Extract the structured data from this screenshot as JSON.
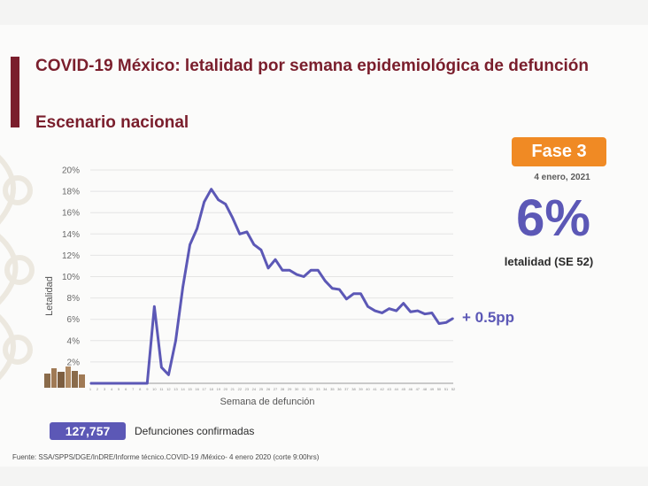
{
  "header": {
    "title": "COVID-19 México: letalidad por semana epidemiológica de defunción",
    "subtitle": "Escenario nacional"
  },
  "summary": {
    "phase": "Fase 3",
    "date": "4 enero, 2021",
    "value": "6%",
    "caption": "letalidad (SE 52)",
    "change": "+ 0.5pp"
  },
  "footer": {
    "deaths_count": "127,757",
    "deaths_label": "Defunciones confirmadas",
    "source": "Fuente: SSA/SPPS/DGE/InDRE/Informe técnico.COVID-19 /México- 4 enero 2020 (corte 9:00hrs)"
  },
  "colors": {
    "line": "#5c58b6",
    "title": "#7a1e2c",
    "accent_bar": "#7a1e2c",
    "phase_badge": "#f08a24",
    "deaths_box": "#5c58b6"
  },
  "chart_data": {
    "type": "line",
    "xlabel": "Semana  de defunción",
    "ylabel": "Letalidad",
    "ylim": [
      0,
      20
    ],
    "yticks": [
      "",
      "2%",
      "4%",
      "6%",
      "8%",
      "10%",
      "12%",
      "14%",
      "16%",
      "18%",
      "20%"
    ],
    "grid": true,
    "x": [
      1,
      2,
      3,
      4,
      5,
      6,
      7,
      8,
      9,
      10,
      11,
      12,
      13,
      14,
      15,
      16,
      17,
      18,
      19,
      20,
      21,
      22,
      23,
      24,
      25,
      26,
      27,
      28,
      29,
      30,
      31,
      32,
      33,
      34,
      35,
      36,
      37,
      38,
      39,
      40,
      41,
      42,
      43,
      44,
      45,
      46,
      47,
      48,
      49,
      50,
      51,
      52
    ],
    "series": [
      {
        "values": [
          0,
          0,
          0,
          0,
          0,
          0,
          0,
          0,
          0,
          7.2,
          1.5,
          0.8,
          4.0,
          9.0,
          13.0,
          14.5,
          17.0,
          18.2,
          17.2,
          16.8,
          15.5,
          14.0,
          14.2,
          13.0,
          12.5,
          10.8,
          11.6,
          10.6,
          10.6,
          10.2,
          10.0,
          10.6,
          10.6,
          9.6,
          8.9,
          8.8,
          7.9,
          8.4,
          8.4,
          7.2,
          6.8,
          6.6,
          7.0,
          6.8,
          7.5,
          6.7,
          6.8,
          6.5,
          6.6,
          5.6,
          5.7,
          6.1
        ]
      }
    ]
  }
}
